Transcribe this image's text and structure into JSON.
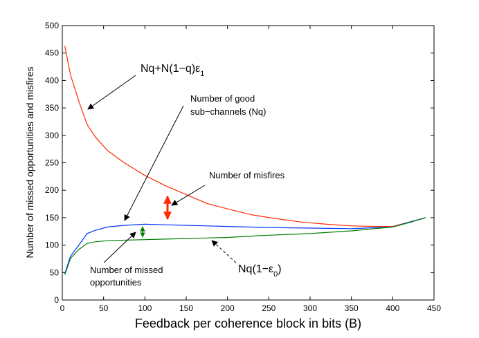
{
  "chart_data": {
    "type": "line",
    "title": "",
    "xlabel": "Feedback per coherence block in bits (B)",
    "ylabel": "Number of missed opportunities and misfires",
    "xlim": [
      0,
      450
    ],
    "ylim": [
      0,
      500
    ],
    "xticks": [
      0,
      50,
      100,
      150,
      200,
      250,
      300,
      350,
      400,
      450
    ],
    "yticks": [
      0,
      50,
      100,
      150,
      200,
      250,
      300,
      350,
      400,
      450,
      500
    ],
    "series": [
      {
        "name": "Nq+N(1-q)ε1",
        "color": "#ff2a00",
        "x": [
          3,
          10,
          20,
          30,
          40,
          55,
          75,
          100,
          125,
          150,
          175,
          200,
          230,
          260,
          290,
          320,
          350,
          380,
          400,
          420,
          440
        ],
        "y": [
          463,
          410,
          362,
          320,
          297,
          272,
          250,
          227,
          208,
          192,
          176,
          166,
          155,
          148,
          142,
          138,
          135,
          134,
          134,
          142,
          150
        ]
      },
      {
        "name": "Number of good sub-channels (Nq)",
        "color": "#0033ff",
        "x": [
          3,
          10,
          20,
          30,
          40,
          55,
          75,
          100,
          125,
          150,
          175,
          200,
          250,
          300,
          350,
          400,
          420,
          440
        ],
        "y": [
          48,
          80,
          100,
          121,
          127,
          133,
          136,
          138,
          137,
          136,
          135,
          134,
          132,
          131,
          130,
          133,
          142,
          150
        ]
      },
      {
        "name": "Nq(1-ε0)",
        "color": "#008000",
        "x": [
          3,
          10,
          20,
          30,
          40,
          55,
          75,
          100,
          125,
          150,
          175,
          200,
          250,
          300,
          350,
          400,
          420,
          440
        ],
        "y": [
          46,
          76,
          92,
          103,
          106,
          108,
          109,
          110,
          111,
          112,
          113,
          114,
          118,
          121,
          126,
          133,
          141,
          150
        ]
      }
    ],
    "annotations": {
      "misfire_formula": "Nq+N(1−q)ε",
      "misfire_formula_sub": "1",
      "good_line1": "Number of good",
      "good_line2": "sub−channels (Nq)",
      "misfires": "Number of misfires",
      "missed_line1": "Number of missed",
      "missed_line2": "opportunities",
      "green_formula_pre": "Nq(1−ε",
      "green_formula_sub": "0",
      "green_formula_post": ")"
    }
  }
}
